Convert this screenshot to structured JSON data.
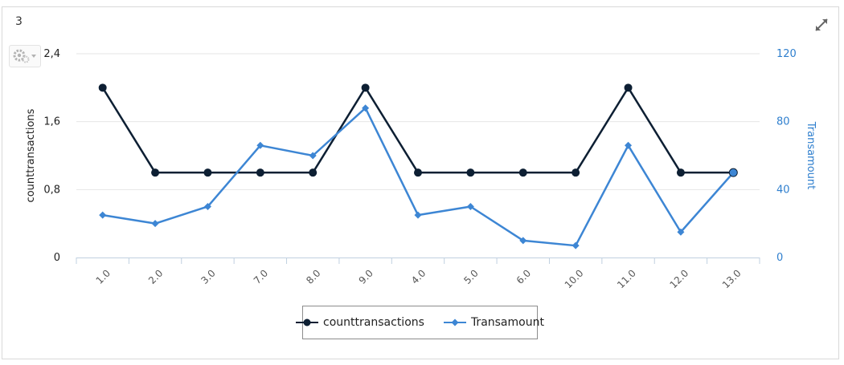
{
  "panel": {
    "title": "3"
  },
  "icons": {
    "expand": "expand-arrows-icon",
    "settings": "gear-icon",
    "dropdown": "caret-down-icon"
  },
  "colors": {
    "series1": "#0d1f33",
    "series2": "#3d86d4",
    "axis_right": "#2f7fce",
    "grid": "#e6e6e6",
    "axis": "#c0d0e0"
  },
  "chart_data": {
    "type": "line",
    "categories": [
      "1.0",
      "2.0",
      "3.0",
      "7.0",
      "8.0",
      "9.0",
      "4.0",
      "5.0",
      "6.0",
      "10.0",
      "11.0",
      "12.0",
      "13.0"
    ],
    "y_left": {
      "label": "counttransactions",
      "ticks": [
        "0",
        "0,8",
        "1,6",
        "2,4"
      ],
      "range": [
        0,
        2.4
      ]
    },
    "y_right": {
      "label": "Transamount",
      "ticks": [
        "0",
        "40",
        "80",
        "120"
      ],
      "range": [
        0,
        120
      ]
    },
    "grid": true,
    "legend_position": "bottom-center",
    "series": [
      {
        "name": "counttransactions",
        "axis": "left",
        "marker": "circle",
        "values": [
          2,
          1,
          1,
          1,
          1,
          2,
          1,
          1,
          1,
          1,
          2,
          1,
          1
        ]
      },
      {
        "name": "Transamount",
        "axis": "right",
        "marker": "diamond",
        "values": [
          25,
          20,
          30,
          66,
          60,
          88,
          25,
          30,
          10,
          7,
          66,
          15,
          50
        ]
      }
    ]
  }
}
